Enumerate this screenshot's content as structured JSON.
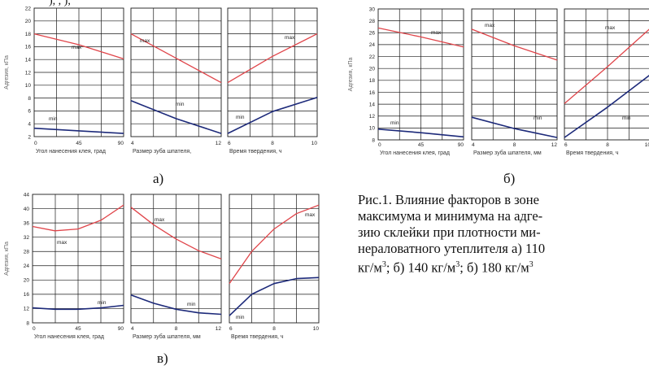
{
  "top_text": "), ,    ),        ",
  "caption": {
    "line1": "Рис.1. Влияние факторов в зоне",
    "line2": "максимума и минимума на адге-",
    "line3": "зию склейки при плотности ми-",
    "line4": "нераловатного утеплителя а) 110",
    "line5_a": "кг/м",
    "line5_b": "; б) 140 кг/м",
    "line5_c": "; б) 180 кг/м",
    "sup": "3"
  },
  "colors": {
    "max": "#e0454a",
    "min": "#1d2a7a",
    "grid": "#1a1a1a"
  },
  "chart_data": [
    {
      "id": "a",
      "sublabel": "а)",
      "type": "line",
      "ylabel": "Адгезия, кПа",
      "ylim": [
        2,
        22
      ],
      "yticks": [
        2,
        4,
        6,
        8,
        10,
        12,
        14,
        16,
        18,
        20,
        22
      ],
      "series_labels": {
        "max": "max",
        "min": "min"
      },
      "panels": [
        {
          "xlabel": "Угол нанесения клея, град",
          "xlim": [
            0,
            90
          ],
          "xticks": [
            0,
            45,
            90
          ],
          "max": {
            "x": [
              0,
              45,
              90
            ],
            "y": [
              18,
              16.3,
              14.1
            ]
          },
          "min": {
            "x": [
              0,
              45,
              90
            ],
            "y": [
              3.3,
              2.9,
              2.5
            ]
          }
        },
        {
          "xlabel": "Размер зуба шпателя,",
          "xlim": [
            4,
            12
          ],
          "xticks": [
            4,
            12
          ],
          "max": {
            "x": [
              4,
              8,
              12
            ],
            "y": [
              18,
              14.2,
              10.4
            ]
          },
          "min": {
            "x": [
              4,
              8,
              12
            ],
            "y": [
              7.6,
              4.8,
              2.5
            ]
          }
        },
        {
          "xlabel": "Время твердения, ч",
          "xlim": [
            6,
            10
          ],
          "xticks": [
            6,
            8,
            10
          ],
          "max": {
            "x": [
              6,
              8,
              10
            ],
            "y": [
              10.4,
              14.5,
              18
            ]
          },
          "min": {
            "x": [
              6,
              8,
              10
            ],
            "y": [
              2.5,
              5.9,
              8.1
            ]
          }
        }
      ]
    },
    {
      "id": "b",
      "sublabel": "б)",
      "type": "line",
      "ylabel": "Адгезия, кПа",
      "ylim": [
        8,
        30
      ],
      "yticks": [
        8,
        10,
        12,
        14,
        16,
        18,
        20,
        22,
        24,
        26,
        28,
        30
      ],
      "series_labels": {
        "max": "max",
        "min": "min"
      },
      "panels": [
        {
          "xlabel": "Угол нанесения клея, град",
          "xlim": [
            0,
            90
          ],
          "xticks": [
            0,
            45,
            90
          ],
          "max": {
            "x": [
              0,
              45,
              90
            ],
            "y": [
              26.8,
              25.3,
              23.6
            ]
          },
          "min": {
            "x": [
              0,
              45,
              90
            ],
            "y": [
              9.8,
              9.2,
              8.5
            ]
          }
        },
        {
          "xlabel": "Размер зуба шпателя, мм",
          "xlim": [
            4,
            12
          ],
          "xticks": [
            4,
            8,
            12
          ],
          "max": {
            "x": [
              4,
              8,
              12
            ],
            "y": [
              26.6,
              23.8,
              21.4
            ]
          },
          "min": {
            "x": [
              4,
              8,
              12
            ],
            "y": [
              11.8,
              9.9,
              8.4
            ]
          }
        },
        {
          "xlabel": "Время твердения, ч",
          "xlim": [
            6,
            10
          ],
          "xticks": [
            6,
            8,
            10
          ],
          "max": {
            "x": [
              6,
              8,
              10
            ],
            "y": [
              14.1,
              20.3,
              26.8
            ]
          },
          "min": {
            "x": [
              6,
              8,
              10
            ],
            "y": [
              8.4,
              13.5,
              19
            ]
          }
        }
      ]
    },
    {
      "id": "c",
      "sublabel": "в)",
      "type": "line",
      "ylabel": "Адгезия, кПа",
      "ylim": [
        8,
        44
      ],
      "yticks": [
        8,
        12,
        16,
        20,
        24,
        28,
        32,
        36,
        40,
        44
      ],
      "series_labels": {
        "max": "max",
        "min": "min"
      },
      "panels": [
        {
          "xlabel": "Угол нанесения клея, град",
          "xlim": [
            0,
            90
          ],
          "xticks": [
            0,
            45,
            90
          ],
          "max": {
            "x": [
              0,
              22,
              45,
              68,
              90
            ],
            "y": [
              35,
              33.8,
              34.3,
              36.8,
              41
            ]
          },
          "min": {
            "x": [
              0,
              22,
              45,
              68,
              90
            ],
            "y": [
              12.2,
              11.8,
              11.8,
              12.2,
              12.9
            ]
          }
        },
        {
          "xlabel": "Размер зуба шпателя, мм",
          "xlim": [
            4,
            12
          ],
          "xticks": [
            4,
            8,
            12
          ],
          "max": {
            "x": [
              4,
              6,
              8,
              10,
              12
            ],
            "y": [
              40.4,
              35.5,
              31.5,
              28.2,
              25.9
            ]
          },
          "min": {
            "x": [
              4,
              6,
              8,
              10,
              12
            ],
            "y": [
              15.8,
              13.5,
              11.8,
              10.8,
              10.4
            ]
          }
        },
        {
          "xlabel": "Время твердения, ч",
          "xlim": [
            6,
            10
          ],
          "xticks": [
            6,
            8,
            10
          ],
          "max": {
            "x": [
              6,
              7,
              8,
              9,
              10
            ],
            "y": [
              19,
              28,
              34.3,
              38.6,
              41
            ]
          },
          "min": {
            "x": [
              6,
              7,
              8,
              9,
              10
            ],
            "y": [
              10,
              16,
              19,
              20.4,
              20.7
            ]
          }
        }
      ]
    }
  ]
}
